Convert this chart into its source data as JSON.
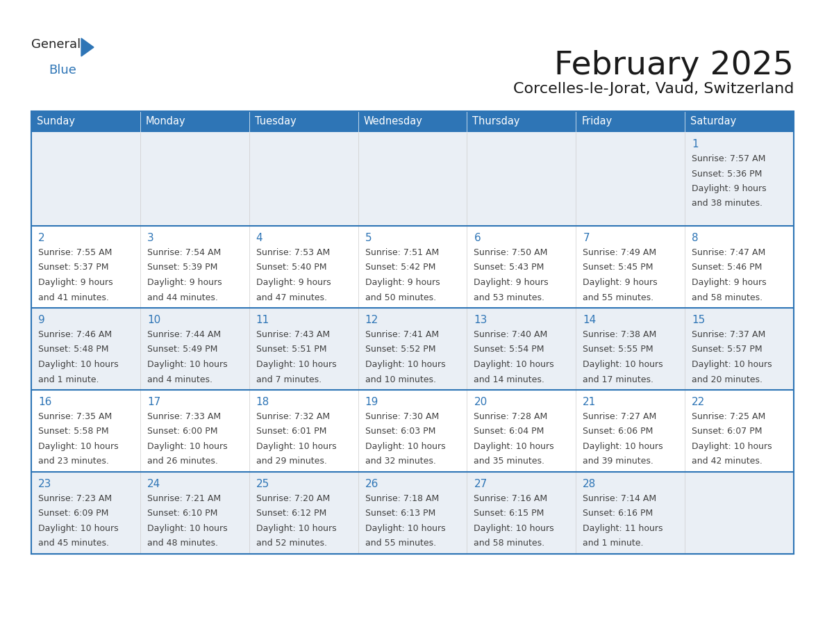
{
  "title": "February 2025",
  "subtitle": "Corcelles-le-Jorat, Vaud, Switzerland",
  "days_of_week": [
    "Sunday",
    "Monday",
    "Tuesday",
    "Wednesday",
    "Thursday",
    "Friday",
    "Saturday"
  ],
  "header_bg": "#2E75B6",
  "header_text": "#FFFFFF",
  "cell_bg_odd": "#EAEFF5",
  "cell_bg_even": "#FFFFFF",
  "border_color": "#2E75B6",
  "day_num_color": "#2E75B6",
  "cell_text_color": "#404040",
  "title_color": "#1A1A1A",
  "subtitle_color": "#1A1A1A",
  "logo_color1": "#222222",
  "logo_color2": "#2E75B6",
  "logo_triangle_color": "#2E75B6",
  "calendar": [
    [
      null,
      null,
      null,
      null,
      null,
      null,
      {
        "day": "1",
        "sunrise": "7:57 AM",
        "sunset": "5:36 PM",
        "daylight": "9 hours",
        "daylight2": "and 38 minutes."
      }
    ],
    [
      {
        "day": "2",
        "sunrise": "7:55 AM",
        "sunset": "5:37 PM",
        "daylight": "9 hours",
        "daylight2": "and 41 minutes."
      },
      {
        "day": "3",
        "sunrise": "7:54 AM",
        "sunset": "5:39 PM",
        "daylight": "9 hours",
        "daylight2": "and 44 minutes."
      },
      {
        "day": "4",
        "sunrise": "7:53 AM",
        "sunset": "5:40 PM",
        "daylight": "9 hours",
        "daylight2": "and 47 minutes."
      },
      {
        "day": "5",
        "sunrise": "7:51 AM",
        "sunset": "5:42 PM",
        "daylight": "9 hours",
        "daylight2": "and 50 minutes."
      },
      {
        "day": "6",
        "sunrise": "7:50 AM",
        "sunset": "5:43 PM",
        "daylight": "9 hours",
        "daylight2": "and 53 minutes."
      },
      {
        "day": "7",
        "sunrise": "7:49 AM",
        "sunset": "5:45 PM",
        "daylight": "9 hours",
        "daylight2": "and 55 minutes."
      },
      {
        "day": "8",
        "sunrise": "7:47 AM",
        "sunset": "5:46 PM",
        "daylight": "9 hours",
        "daylight2": "and 58 minutes."
      }
    ],
    [
      {
        "day": "9",
        "sunrise": "7:46 AM",
        "sunset": "5:48 PM",
        "daylight": "10 hours",
        "daylight2": "and 1 minute."
      },
      {
        "day": "10",
        "sunrise": "7:44 AM",
        "sunset": "5:49 PM",
        "daylight": "10 hours",
        "daylight2": "and 4 minutes."
      },
      {
        "day": "11",
        "sunrise": "7:43 AM",
        "sunset": "5:51 PM",
        "daylight": "10 hours",
        "daylight2": "and 7 minutes."
      },
      {
        "day": "12",
        "sunrise": "7:41 AM",
        "sunset": "5:52 PM",
        "daylight": "10 hours",
        "daylight2": "and 10 minutes."
      },
      {
        "day": "13",
        "sunrise": "7:40 AM",
        "sunset": "5:54 PM",
        "daylight": "10 hours",
        "daylight2": "and 14 minutes."
      },
      {
        "day": "14",
        "sunrise": "7:38 AM",
        "sunset": "5:55 PM",
        "daylight": "10 hours",
        "daylight2": "and 17 minutes."
      },
      {
        "day": "15",
        "sunrise": "7:37 AM",
        "sunset": "5:57 PM",
        "daylight": "10 hours",
        "daylight2": "and 20 minutes."
      }
    ],
    [
      {
        "day": "16",
        "sunrise": "7:35 AM",
        "sunset": "5:58 PM",
        "daylight": "10 hours",
        "daylight2": "and 23 minutes."
      },
      {
        "day": "17",
        "sunrise": "7:33 AM",
        "sunset": "6:00 PM",
        "daylight": "10 hours",
        "daylight2": "and 26 minutes."
      },
      {
        "day": "18",
        "sunrise": "7:32 AM",
        "sunset": "6:01 PM",
        "daylight": "10 hours",
        "daylight2": "and 29 minutes."
      },
      {
        "day": "19",
        "sunrise": "7:30 AM",
        "sunset": "6:03 PM",
        "daylight": "10 hours",
        "daylight2": "and 32 minutes."
      },
      {
        "day": "20",
        "sunrise": "7:28 AM",
        "sunset": "6:04 PM",
        "daylight": "10 hours",
        "daylight2": "and 35 minutes."
      },
      {
        "day": "21",
        "sunrise": "7:27 AM",
        "sunset": "6:06 PM",
        "daylight": "10 hours",
        "daylight2": "and 39 minutes."
      },
      {
        "day": "22",
        "sunrise": "7:25 AM",
        "sunset": "6:07 PM",
        "daylight": "10 hours",
        "daylight2": "and 42 minutes."
      }
    ],
    [
      {
        "day": "23",
        "sunrise": "7:23 AM",
        "sunset": "6:09 PM",
        "daylight": "10 hours",
        "daylight2": "and 45 minutes."
      },
      {
        "day": "24",
        "sunrise": "7:21 AM",
        "sunset": "6:10 PM",
        "daylight": "10 hours",
        "daylight2": "and 48 minutes."
      },
      {
        "day": "25",
        "sunrise": "7:20 AM",
        "sunset": "6:12 PM",
        "daylight": "10 hours",
        "daylight2": "and 52 minutes."
      },
      {
        "day": "26",
        "sunrise": "7:18 AM",
        "sunset": "6:13 PM",
        "daylight": "10 hours",
        "daylight2": "and 55 minutes."
      },
      {
        "day": "27",
        "sunrise": "7:16 AM",
        "sunset": "6:15 PM",
        "daylight": "10 hours",
        "daylight2": "and 58 minutes."
      },
      {
        "day": "28",
        "sunrise": "7:14 AM",
        "sunset": "6:16 PM",
        "daylight": "11 hours",
        "daylight2": "and 1 minute."
      },
      null
    ]
  ]
}
